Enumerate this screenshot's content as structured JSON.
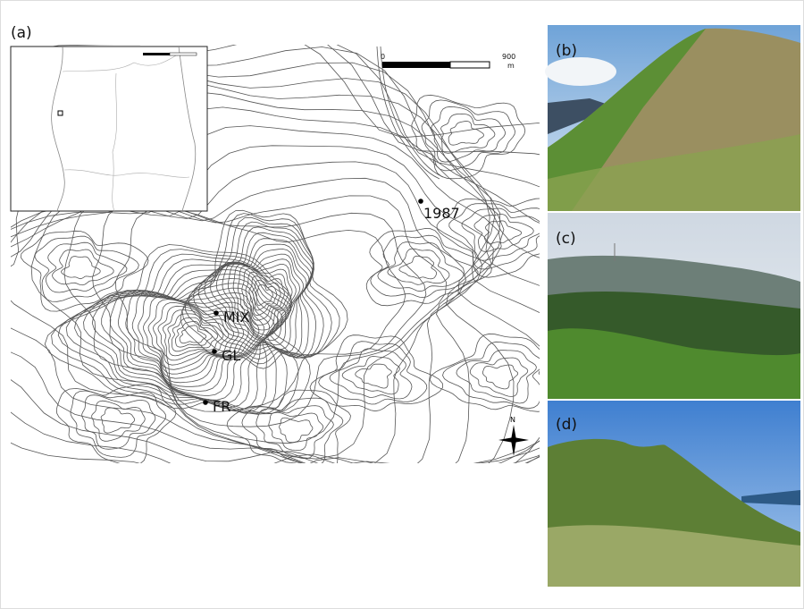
{
  "panels": {
    "a": "(a)",
    "b": "(b)",
    "c": "(c)",
    "d": "(d)"
  },
  "map": {
    "sites": [
      {
        "label": "1987"
      },
      {
        "label": "MIX"
      },
      {
        "label": "GL"
      },
      {
        "label": "FR"
      }
    ],
    "scale_bar": {
      "start": "0",
      "end": "900",
      "unit": "m"
    },
    "north": "N"
  }
}
